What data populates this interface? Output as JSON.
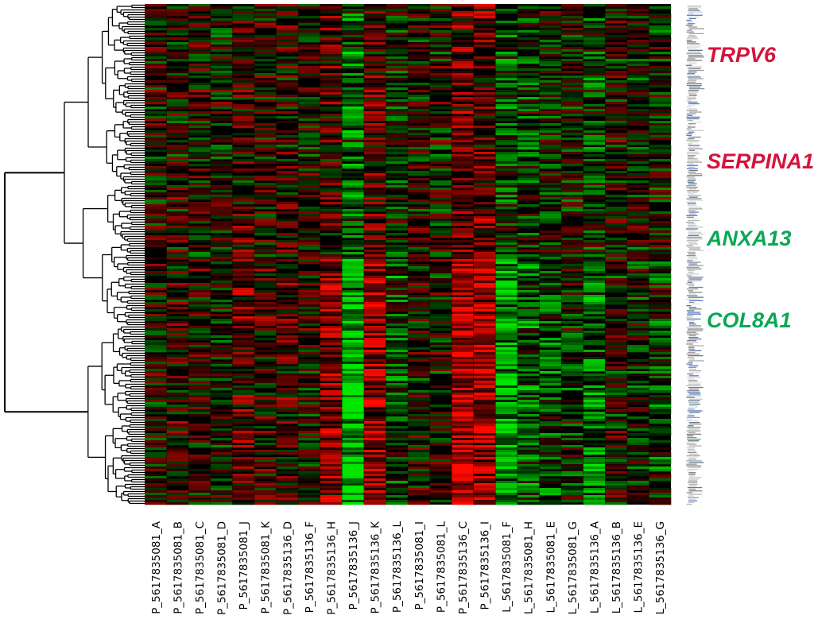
{
  "chart_data": {
    "type": "heatmap",
    "title": "",
    "colors": {
      "up": "#ff0000",
      "down": "#00e000",
      "neutral": "#000000",
      "up_label": "#d4143c",
      "down_label": "#0aa855"
    },
    "samples": [
      "P_5617835081_A",
      "P_5617835081_B",
      "P_5617835081_C",
      "P_5617835081_D",
      "P_5617835081_J",
      "P_5617835081_K",
      "P_5617835136_D",
      "P_5617835136_F",
      "P_5617835136_H",
      "P_5617835136_J",
      "P_5617835136_K",
      "P_5617835136_L",
      "P_5617835081_I",
      "P_5617835081_L",
      "P_5617835136_C",
      "P_5617835136_I",
      "L_5617835081_F",
      "L_5617835081_H",
      "L_5617835081_E",
      "L_5617835081_G",
      "L_5617835136_A",
      "L_5617835136_B",
      "L_5617835136_E",
      "L_5617835136_G"
    ],
    "sample_groups": [
      "P",
      "P",
      "P",
      "P",
      "P",
      "P",
      "P",
      "P",
      "P",
      "P",
      "P",
      "P",
      "P",
      "P",
      "P",
      "P",
      "L",
      "L",
      "L",
      "L",
      "L",
      "L",
      "L",
      "L"
    ],
    "highlighted_genes": [
      {
        "name": "TRPV6",
        "direction": "up"
      },
      {
        "name": "SERPINA1",
        "direction": "up"
      },
      {
        "name": "ANXA13",
        "direction": "down"
      },
      {
        "name": "COL8A1",
        "direction": "down"
      }
    ],
    "column_tendency": [
      0.0,
      0.1,
      0.05,
      -0.05,
      0.25,
      0.1,
      0.15,
      0.05,
      0.35,
      -0.6,
      0.4,
      -0.2,
      0.05,
      0.0,
      0.55,
      0.5,
      -0.45,
      -0.25,
      -0.2,
      -0.1,
      -0.35,
      0.0,
      -0.05,
      -0.15
    ],
    "row_dendrogram": true,
    "column_dendrogram": false,
    "grid": false,
    "legend": "none"
  }
}
